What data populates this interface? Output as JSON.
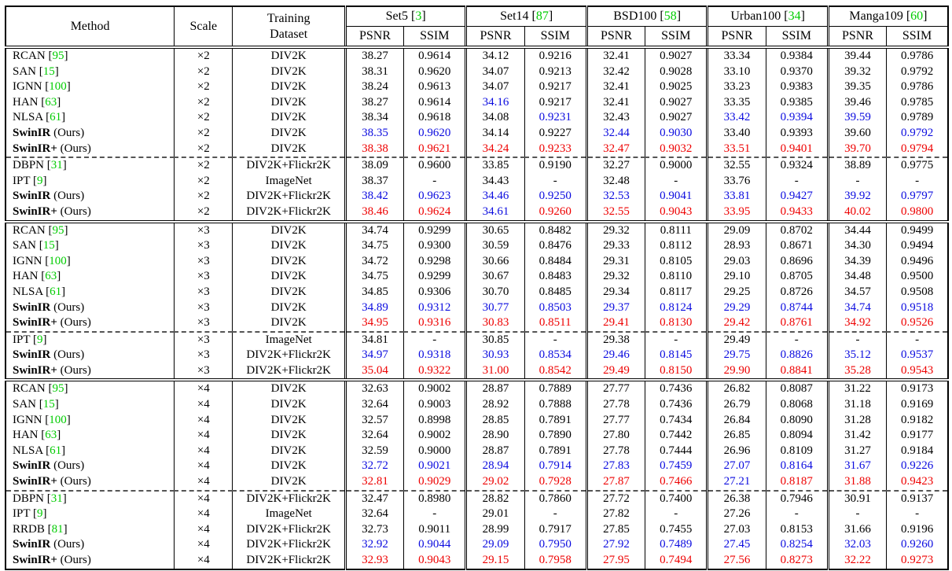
{
  "palette": {
    "text": "#000000",
    "best": "#ee0000",
    "second": "#0b0bdf",
    "cite": "#00cc00"
  },
  "header": {
    "method": "Method",
    "scale": "Scale",
    "training_line1": "Training",
    "training_line2": "Dataset",
    "metrics": [
      "PSNR",
      "SSIM"
    ],
    "benchmarks": [
      {
        "name": "Set5",
        "cite": "3"
      },
      {
        "name": "Set14",
        "cite": "87"
      },
      {
        "name": "BSD100",
        "cite": "58"
      },
      {
        "name": "Urban100",
        "cite": "34"
      },
      {
        "name": "Manga109",
        "cite": "60"
      }
    ]
  },
  "groups": [
    {
      "scale": "×2",
      "blocks": [
        {
          "rows": [
            {
              "method": "RCAN",
              "cite": "95",
              "ours": false,
              "dataset": "DIV2K",
              "vals": [
                "38.27",
                "0.9614",
                "34.12",
                "0.9216",
                "32.41",
                "0.9027",
                "33.34",
                "0.9384",
                "39.44",
                "0.9786"
              ],
              "cols": "kkkkkkkkkk"
            },
            {
              "method": "SAN",
              "cite": "15",
              "ours": false,
              "dataset": "DIV2K",
              "vals": [
                "38.31",
                "0.9620",
                "34.07",
                "0.9213",
                "32.42",
                "0.9028",
                "33.10",
                "0.9370",
                "39.32",
                "0.9792"
              ],
              "cols": "kkkkkkkkkk"
            },
            {
              "method": "IGNN",
              "cite": "100",
              "ours": false,
              "dataset": "DIV2K",
              "vals": [
                "38.24",
                "0.9613",
                "34.07",
                "0.9217",
                "32.41",
                "0.9025",
                "33.23",
                "0.9383",
                "39.35",
                "0.9786"
              ],
              "cols": "kkkkkkkkkk"
            },
            {
              "method": "HAN",
              "cite": "63",
              "ours": false,
              "dataset": "DIV2K",
              "vals": [
                "38.27",
                "0.9614",
                "34.16",
                "0.9217",
                "32.41",
                "0.9027",
                "33.35",
                "0.9385",
                "39.46",
                "0.9785"
              ],
              "cols": "kkbkkkkkkk"
            },
            {
              "method": "NLSA",
              "cite": "61",
              "ours": false,
              "dataset": "DIV2K",
              "vals": [
                "38.34",
                "0.9618",
                "34.08",
                "0.9231",
                "32.43",
                "0.9027",
                "33.42",
                "0.9394",
                "39.59",
                "0.9789"
              ],
              "cols": "kkkbkkbbbk"
            },
            {
              "method": "SwinIR",
              "cite": "",
              "ours": true,
              "dataset": "DIV2K",
              "vals": [
                "38.35",
                "0.9620",
                "34.14",
                "0.9227",
                "32.44",
                "0.9030",
                "33.40",
                "0.9393",
                "39.60",
                "0.9792"
              ],
              "cols": "bbkkbbkkkb"
            },
            {
              "method": "SwinIR+",
              "cite": "",
              "ours": true,
              "dataset": "DIV2K",
              "vals": [
                "38.38",
                "0.9621",
                "34.24",
                "0.9233",
                "32.47",
                "0.9032",
                "33.51",
                "0.9401",
                "39.70",
                "0.9794"
              ],
              "cols": "rrrrrrrrrr"
            }
          ]
        },
        {
          "rows": [
            {
              "method": "DBPN",
              "cite": "31",
              "ours": false,
              "dataset": "DIV2K+Flickr2K",
              "vals": [
                "38.09",
                "0.9600",
                "33.85",
                "0.9190",
                "32.27",
                "0.9000",
                "32.55",
                "0.9324",
                "38.89",
                "0.9775"
              ],
              "cols": "kkkkkkkkkk"
            },
            {
              "method": "IPT",
              "cite": "9",
              "ours": false,
              "dataset": "ImageNet",
              "vals": [
                "38.37",
                "-",
                "34.43",
                "-",
                "32.48",
                "-",
                "33.76",
                "-",
                "-",
                "-"
              ],
              "cols": "kkkkkkkkkk"
            },
            {
              "method": "SwinIR",
              "cite": "",
              "ours": true,
              "dataset": "DIV2K+Flickr2K",
              "vals": [
                "38.42",
                "0.9623",
                "34.46",
                "0.9250",
                "32.53",
                "0.9041",
                "33.81",
                "0.9427",
                "39.92",
                "0.9797"
              ],
              "cols": "bbbbbbbbbb"
            },
            {
              "method": "SwinIR+",
              "cite": "",
              "ours": true,
              "dataset": "DIV2K+Flickr2K",
              "vals": [
                "38.46",
                "0.9624",
                "34.61",
                "0.9260",
                "32.55",
                "0.9043",
                "33.95",
                "0.9433",
                "40.02",
                "0.9800"
              ],
              "cols": "rrbrrrrrrr"
            }
          ]
        }
      ]
    },
    {
      "scale": "×3",
      "blocks": [
        {
          "rows": [
            {
              "method": "RCAN",
              "cite": "95",
              "ours": false,
              "dataset": "DIV2K",
              "vals": [
                "34.74",
                "0.9299",
                "30.65",
                "0.8482",
                "29.32",
                "0.8111",
                "29.09",
                "0.8702",
                "34.44",
                "0.9499"
              ],
              "cols": "kkkkkkkkkk"
            },
            {
              "method": "SAN",
              "cite": "15",
              "ours": false,
              "dataset": "DIV2K",
              "vals": [
                "34.75",
                "0.9300",
                "30.59",
                "0.8476",
                "29.33",
                "0.8112",
                "28.93",
                "0.8671",
                "34.30",
                "0.9494"
              ],
              "cols": "kkkkkkkkkk"
            },
            {
              "method": "IGNN",
              "cite": "100",
              "ours": false,
              "dataset": "DIV2K",
              "vals": [
                "34.72",
                "0.9298",
                "30.66",
                "0.8484",
                "29.31",
                "0.8105",
                "29.03",
                "0.8696",
                "34.39",
                "0.9496"
              ],
              "cols": "kkkkkkkkkk"
            },
            {
              "method": "HAN",
              "cite": "63",
              "ours": false,
              "dataset": "DIV2K",
              "vals": [
                "34.75",
                "0.9299",
                "30.67",
                "0.8483",
                "29.32",
                "0.8110",
                "29.10",
                "0.8705",
                "34.48",
                "0.9500"
              ],
              "cols": "kkkkkkkkkk"
            },
            {
              "method": "NLSA",
              "cite": "61",
              "ours": false,
              "dataset": "DIV2K",
              "vals": [
                "34.85",
                "0.9306",
                "30.70",
                "0.8485",
                "29.34",
                "0.8117",
                "29.25",
                "0.8726",
                "34.57",
                "0.9508"
              ],
              "cols": "kkkkkkkkkk"
            },
            {
              "method": "SwinIR",
              "cite": "",
              "ours": true,
              "dataset": "DIV2K",
              "vals": [
                "34.89",
                "0.9312",
                "30.77",
                "0.8503",
                "29.37",
                "0.8124",
                "29.29",
                "0.8744",
                "34.74",
                "0.9518"
              ],
              "cols": "bbbbbbbbbb"
            },
            {
              "method": "SwinIR+",
              "cite": "",
              "ours": true,
              "dataset": "DIV2K",
              "vals": [
                "34.95",
                "0.9316",
                "30.83",
                "0.8511",
                "29.41",
                "0.8130",
                "29.42",
                "0.8761",
                "34.92",
                "0.9526"
              ],
              "cols": "rrrrrrrrrr"
            }
          ]
        },
        {
          "rows": [
            {
              "method": "IPT",
              "cite": "9",
              "ours": false,
              "dataset": "ImageNet",
              "vals": [
                "34.81",
                "-",
                "30.85",
                "-",
                "29.38",
                "-",
                "29.49",
                "-",
                "-",
                "-"
              ],
              "cols": "kkkkkkkkkk"
            },
            {
              "method": "SwinIR",
              "cite": "",
              "ours": true,
              "dataset": "DIV2K+Flickr2K",
              "vals": [
                "34.97",
                "0.9318",
                "30.93",
                "0.8534",
                "29.46",
                "0.8145",
                "29.75",
                "0.8826",
                "35.12",
                "0.9537"
              ],
              "cols": "bbbbbbbbbb"
            },
            {
              "method": "SwinIR+",
              "cite": "",
              "ours": true,
              "dataset": "DIV2K+Flickr2K",
              "vals": [
                "35.04",
                "0.9322",
                "31.00",
                "0.8542",
                "29.49",
                "0.8150",
                "29.90",
                "0.8841",
                "35.28",
                "0.9543"
              ],
              "cols": "rrrrrrrrrr"
            }
          ]
        }
      ]
    },
    {
      "scale": "×4",
      "blocks": [
        {
          "rows": [
            {
              "method": "RCAN",
              "cite": "95",
              "ours": false,
              "dataset": "DIV2K",
              "vals": [
                "32.63",
                "0.9002",
                "28.87",
                "0.7889",
                "27.77",
                "0.7436",
                "26.82",
                "0.8087",
                "31.22",
                "0.9173"
              ],
              "cols": "kkkkkkkkkk"
            },
            {
              "method": "SAN",
              "cite": "15",
              "ours": false,
              "dataset": "DIV2K",
              "vals": [
                "32.64",
                "0.9003",
                "28.92",
                "0.7888",
                "27.78",
                "0.7436",
                "26.79",
                "0.8068",
                "31.18",
                "0.9169"
              ],
              "cols": "kkkkkkkkkk"
            },
            {
              "method": "IGNN",
              "cite": "100",
              "ours": false,
              "dataset": "DIV2K",
              "vals": [
                "32.57",
                "0.8998",
                "28.85",
                "0.7891",
                "27.77",
                "0.7434",
                "26.84",
                "0.8090",
                "31.28",
                "0.9182"
              ],
              "cols": "kkkkkkkkkk"
            },
            {
              "method": "HAN",
              "cite": "63",
              "ours": false,
              "dataset": "DIV2K",
              "vals": [
                "32.64",
                "0.9002",
                "28.90",
                "0.7890",
                "27.80",
                "0.7442",
                "26.85",
                "0.8094",
                "31.42",
                "0.9177"
              ],
              "cols": "kkkkkkkkkk"
            },
            {
              "method": "NLSA",
              "cite": "61",
              "ours": false,
              "dataset": "DIV2K",
              "vals": [
                "32.59",
                "0.9000",
                "28.87",
                "0.7891",
                "27.78",
                "0.7444",
                "26.96",
                "0.8109",
                "31.27",
                "0.9184"
              ],
              "cols": "kkkkkkkkkk"
            },
            {
              "method": "SwinIR",
              "cite": "",
              "ours": true,
              "dataset": "DIV2K",
              "vals": [
                "32.72",
                "0.9021",
                "28.94",
                "0.7914",
                "27.83",
                "0.7459",
                "27.07",
                "0.8164",
                "31.67",
                "0.9226"
              ],
              "cols": "bbbbbbbbbb"
            },
            {
              "method": "SwinIR+",
              "cite": "",
              "ours": true,
              "dataset": "DIV2K",
              "vals": [
                "32.81",
                "0.9029",
                "29.02",
                "0.7928",
                "27.87",
                "0.7466",
                "27.21",
                "0.8187",
                "31.88",
                "0.9423"
              ],
              "cols": "rrrrrrbrrr"
            }
          ]
        },
        {
          "rows": [
            {
              "method": "DBPN",
              "cite": "31",
              "ours": false,
              "dataset": "DIV2K+Flickr2K",
              "vals": [
                "32.47",
                "0.8980",
                "28.82",
                "0.7860",
                "27.72",
                "0.7400",
                "26.38",
                "0.7946",
                "30.91",
                "0.9137"
              ],
              "cols": "kkkkkkkkkk"
            },
            {
              "method": "IPT",
              "cite": "9",
              "ours": false,
              "dataset": "ImageNet",
              "vals": [
                "32.64",
                "-",
                "29.01",
                "-",
                "27.82",
                "-",
                "27.26",
                "-",
                "-",
                "-"
              ],
              "cols": "kkkkkkkkkk"
            },
            {
              "method": "RRDB",
              "cite": "81",
              "ours": false,
              "dataset": "DIV2K+Flickr2K",
              "vals": [
                "32.73",
                "0.9011",
                "28.99",
                "0.7917",
                "27.85",
                "0.7455",
                "27.03",
                "0.8153",
                "31.66",
                "0.9196"
              ],
              "cols": "kkkkkkkkkk"
            },
            {
              "method": "SwinIR",
              "cite": "",
              "ours": true,
              "dataset": "DIV2K+Flickr2K",
              "vals": [
                "32.92",
                "0.9044",
                "29.09",
                "0.7950",
                "27.92",
                "0.7489",
                "27.45",
                "0.8254",
                "32.03",
                "0.9260"
              ],
              "cols": "bbbbbbbbbb"
            },
            {
              "method": "SwinIR+",
              "cite": "",
              "ours": true,
              "dataset": "DIV2K+Flickr2K",
              "vals": [
                "32.93",
                "0.9043",
                "29.15",
                "0.7958",
                "27.95",
                "0.7494",
                "27.56",
                "0.8273",
                "32.22",
                "0.9273"
              ],
              "cols": "rrrrrrrrrr"
            }
          ]
        }
      ]
    }
  ]
}
